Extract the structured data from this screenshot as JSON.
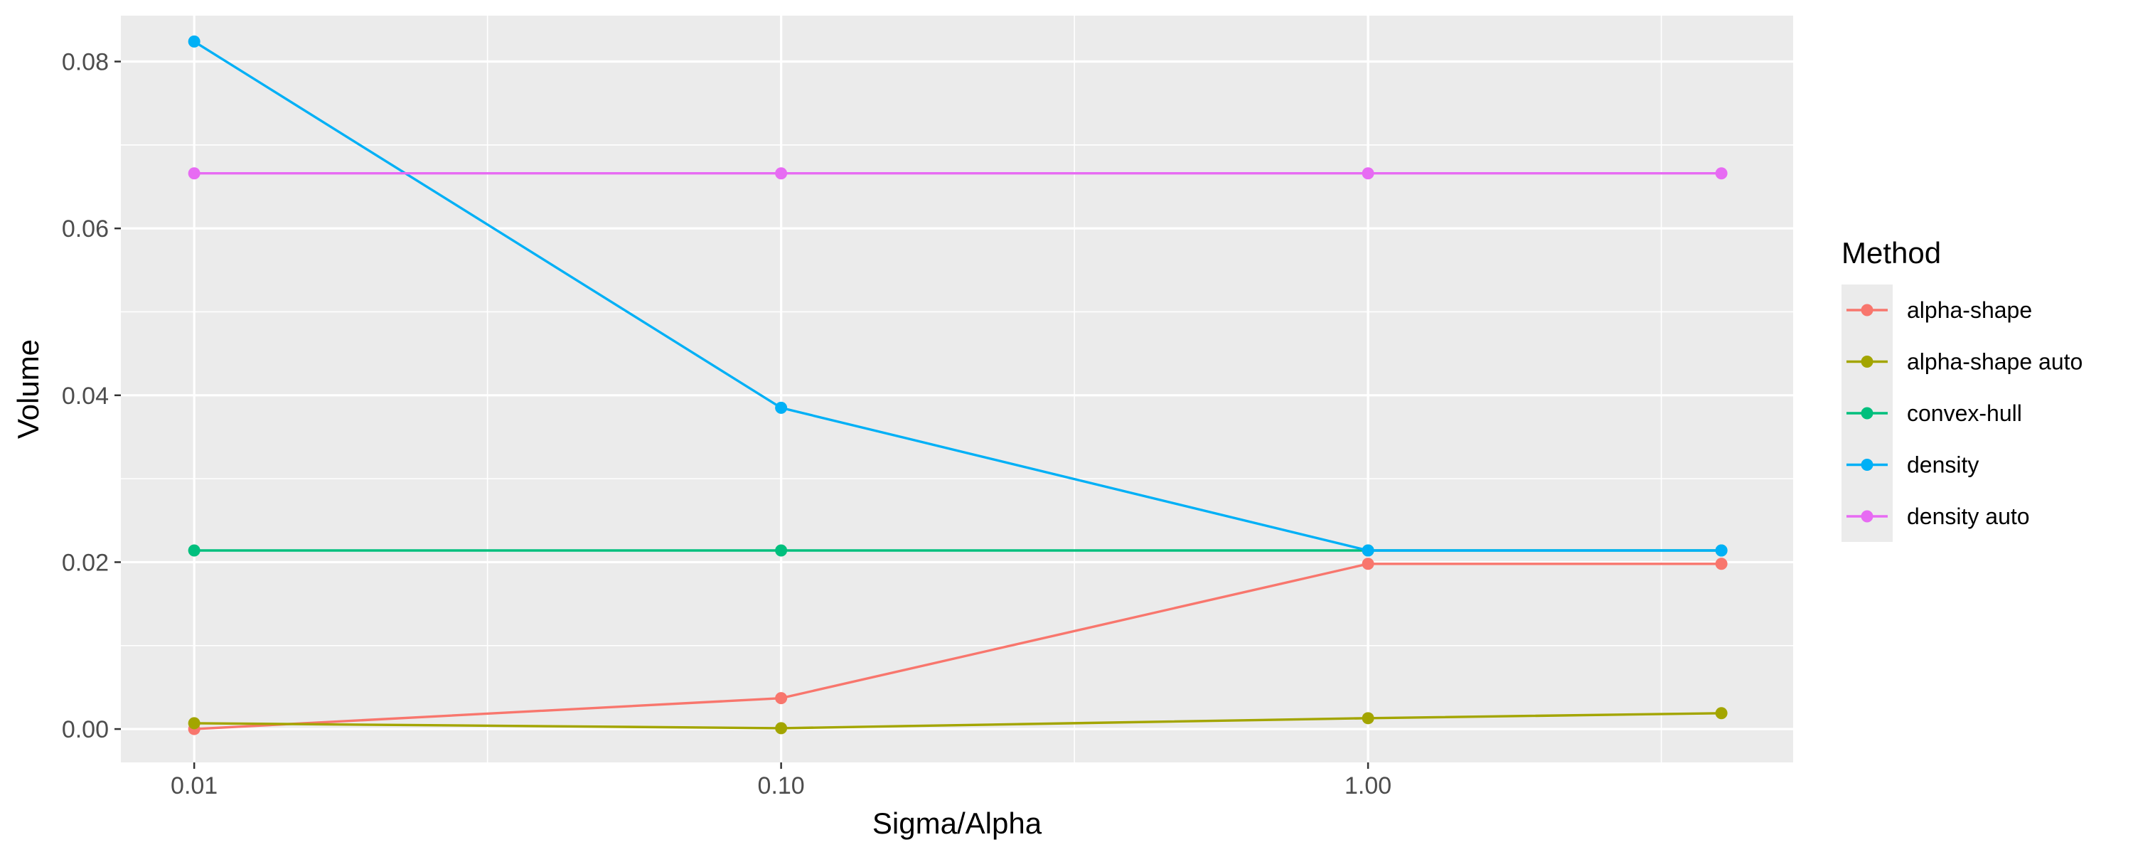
{
  "chart_data": {
    "type": "line",
    "xlabel": "Sigma/Alpha",
    "ylabel": "Volume",
    "x_scale": "log10",
    "xlim": [
      0.0075,
      5.3
    ],
    "ylim": [
      -0.004,
      0.0855
    ],
    "x_ticks": [
      {
        "value": 0.01,
        "label": "0.01"
      },
      {
        "value": 0.1,
        "label": "0.10"
      },
      {
        "value": 1.0,
        "label": "1.00"
      }
    ],
    "x_minor_ticks": [
      0.0316,
      0.316,
      3.16
    ],
    "y_ticks": [
      {
        "value": 0.0,
        "label": "0.00"
      },
      {
        "value": 0.02,
        "label": "0.02"
      },
      {
        "value": 0.04,
        "label": "0.04"
      },
      {
        "value": 0.06,
        "label": "0.06"
      },
      {
        "value": 0.08,
        "label": "0.08"
      }
    ],
    "y_minor_ticks": [
      0.01,
      0.03,
      0.05,
      0.07
    ],
    "x": [
      0.01,
      0.1,
      1.0,
      4.0
    ],
    "grid": true,
    "background": "#ebebeb",
    "legend_title": "Method",
    "legend_position": "right",
    "series": [
      {
        "name": "alpha-shape",
        "color": "#F8766D",
        "values": [
          0.0,
          0.0037,
          0.0198,
          0.0198
        ]
      },
      {
        "name": "alpha-shape auto",
        "color": "#A3A500",
        "values": [
          0.0007,
          0.0001,
          0.0013,
          0.0019
        ]
      },
      {
        "name": "convex-hull",
        "color": "#00BF7D",
        "values": [
          0.0214,
          0.0214,
          0.0214,
          0.0214
        ]
      },
      {
        "name": "density",
        "color": "#00B0F6",
        "values": [
          0.0824,
          0.0385,
          0.0214,
          0.0214
        ]
      },
      {
        "name": "density auto",
        "color": "#E76BF3",
        "values": [
          0.0666,
          0.0666,
          0.0666,
          0.0666
        ]
      }
    ]
  }
}
